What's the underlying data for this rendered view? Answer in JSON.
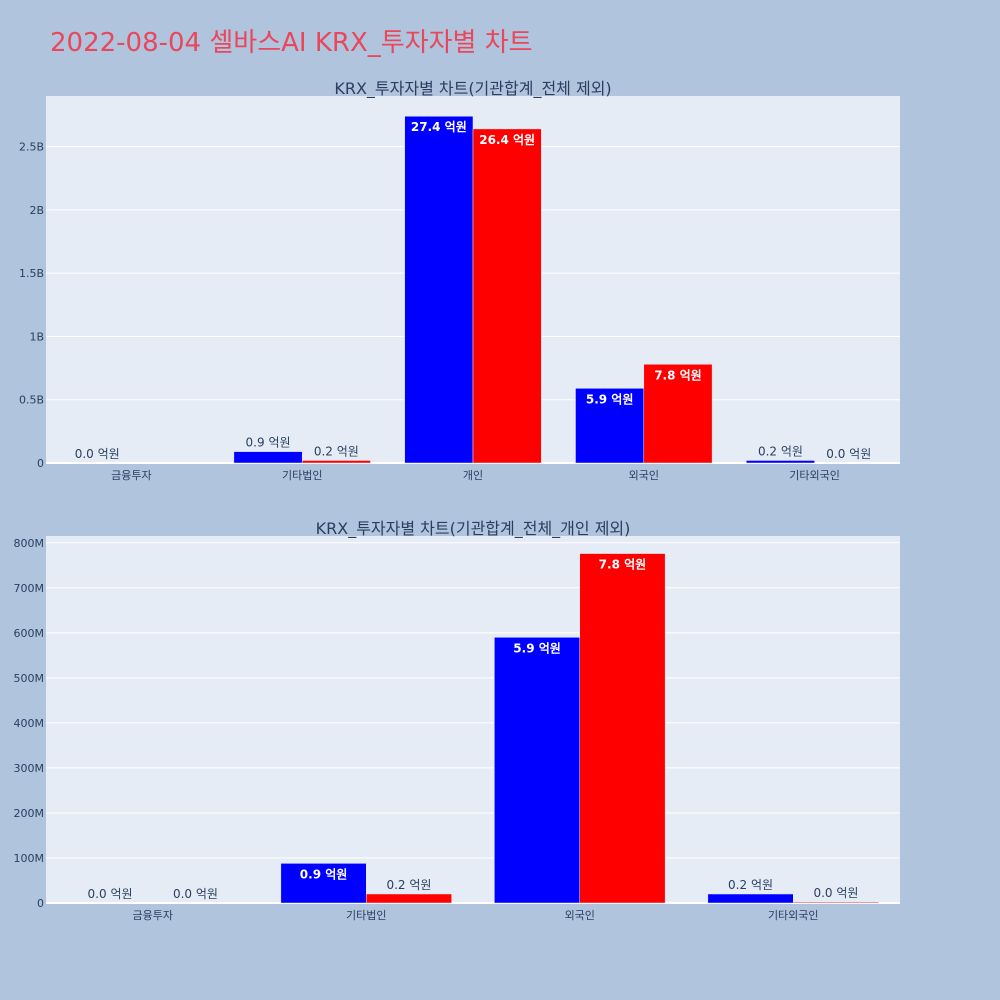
{
  "page_title": "2022-08-04 셀바스AI KRX_투자자별 차트",
  "colors": {
    "background": "#b0c4de",
    "plot_bg": "#e5ecf6",
    "grid": "#ffffff",
    "title": "#e8475c",
    "buy": "#0000ff",
    "sell": "#ff0000"
  },
  "chart_data": [
    {
      "type": "bar",
      "title": "KRX_투자자별 차트(기관합계_전체 제외)",
      "categories": [
        "금융투자",
        "기타법인",
        "개인",
        "외국인",
        "기타외국인"
      ],
      "series": [
        {
          "color": "#0000ff",
          "values": [
            0,
            90000000,
            2740000000,
            590000000,
            20000000
          ],
          "labels": [
            "0.0 억원",
            "0.9 억원",
            "27.4 억원",
            "5.9 억원",
            "0.2 억원"
          ]
        },
        {
          "color": "#ff0000",
          "values": [
            0,
            20000000,
            2640000000,
            780000000,
            0
          ],
          "labels": [
            "",
            "0.2 억원",
            "26.4 억원",
            "7.8 억원",
            "0.0 억원"
          ]
        }
      ],
      "yticks": [
        0,
        500000000,
        1000000000,
        1500000000,
        2000000000,
        2500000000
      ],
      "ytick_labels": [
        "0",
        "0.5B",
        "1B",
        "1.5B",
        "2B",
        "2.5B"
      ],
      "ylim": [
        0,
        2900000000
      ],
      "grid": true,
      "xlabel": "",
      "ylabel": ""
    },
    {
      "type": "bar",
      "title": "KRX_투자자별 차트(기관합계_전체_개인 제외)",
      "categories": [
        "금융투자",
        "기타법인",
        "외국인",
        "기타외국인"
      ],
      "series": [
        {
          "color": "#0000ff",
          "values": [
            0,
            88000000,
            590000000,
            20000000
          ],
          "labels": [
            "0.0 억원",
            "0.9 억원",
            "5.9 억원",
            "0.2 억원"
          ]
        },
        {
          "color": "#ff0000",
          "values": [
            0,
            20000000,
            776000000,
            2000000
          ],
          "labels": [
            "0.0 억원",
            "0.2 억원",
            "7.8 억원",
            "0.0 억원"
          ]
        }
      ],
      "yticks": [
        0,
        100000000,
        200000000,
        300000000,
        400000000,
        500000000,
        600000000,
        700000000,
        800000000
      ],
      "ytick_labels": [
        "0",
        "100M",
        "200M",
        "300M",
        "400M",
        "500M",
        "600M",
        "700M",
        "800M"
      ],
      "ylim": [
        0,
        815000000
      ],
      "grid": true,
      "xlabel": "",
      "ylabel": ""
    }
  ]
}
